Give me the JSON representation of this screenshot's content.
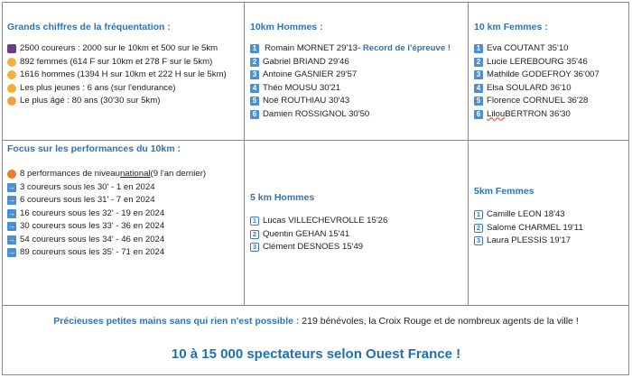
{
  "stats": {
    "title": "Grands chiffres de la fréquentation :",
    "items": [
      {
        "icon": "people-icon",
        "text": "2500 coureurs : 2000 sur le 10km et 500 sur le 5km"
      },
      {
        "icon": "runner-icon",
        "text": "892 femmes (614 F sur 10km et 278 F sur le 5km)"
      },
      {
        "icon": "runner-icon",
        "text": "1616 hommes (1394 H sur 10km et 222 H sur le 5km)"
      },
      {
        "icon": "baby-icon",
        "text": "Les plus jeunes : 6 ans (sur l'endurance)"
      },
      {
        "icon": "elder-icon",
        "text": "Le plus âgé : 80 ans (30'30 sur 5km)"
      }
    ]
  },
  "men10": {
    "title": "10km Hommes :",
    "record": "- Record de l'épreuve !",
    "items": [
      {
        "rank": "1",
        "text": "Romain MORNET 29'13"
      },
      {
        "rank": "2",
        "text": "Gabriel BRIAND 29'46"
      },
      {
        "rank": "3",
        "text": "Antoine GASNIER 29'57"
      },
      {
        "rank": "4",
        "text": "Théo MOUSU 30'21"
      },
      {
        "rank": "5",
        "text": "Noé ROUTHIAU 30'43"
      },
      {
        "rank": "6",
        "text": "Damien ROSSIGNOL 30'50"
      }
    ]
  },
  "women10": {
    "title": "10 km Femmes :",
    "items": [
      {
        "rank": "1",
        "text": "Eva COUTANT 35'10"
      },
      {
        "rank": "2",
        "text": "Lucie LEREBOURG 35'46"
      },
      {
        "rank": "3",
        "text": "Mathilde GODEFROY 36'007"
      },
      {
        "rank": "4",
        "text": "Elsa SOULARD 36'10"
      },
      {
        "rank": "5",
        "text": "Florence CORNUEL 36'28"
      },
      {
        "rank": "6",
        "first": "Lilou",
        "text": " BERTRON 36'30"
      }
    ]
  },
  "focus": {
    "title": "Focus sur les performances du 10km :",
    "fire": {
      "a": "8 performances de niveau ",
      "b": "national ",
      "c": " (9 l'an dernier)"
    },
    "items": [
      "3 coureurs sous les 30' - 1 en 2024",
      "6 coureurs sous les 31' - 7 en 2024",
      "16 coureurs sous les 32' - 19 en 2024",
      "30 coureurs sous les 33' - 36 en 2024",
      "54 coureurs sous les 34' - 46 en 2024",
      "89 coureurs sous les 35' - 71 en 2024"
    ]
  },
  "men5": {
    "title": "5 km Hommes",
    "items": [
      {
        "rank": "1",
        "text": "Lucas VILLECHEVROLLE 15'26"
      },
      {
        "rank": "2",
        "text": "Quentin GEHAN 15'41"
      },
      {
        "rank": "3",
        "text": "Clément DESNOES 15'49"
      }
    ]
  },
  "women5": {
    "title": "5km Femmes",
    "items": [
      {
        "rank": "1",
        "text": "Camille LEON 18'43"
      },
      {
        "rank": "2",
        "text": "Salomé CHARMEL 19'11"
      },
      {
        "rank": "3",
        "text": "Laura PLESSIS 19'17"
      }
    ]
  },
  "footer": {
    "lead": "Précieuses petites mains sans qui rien n'est possible :",
    "rest": " 219 bénévoles, la Croix Rouge et de nombreux agents de la ville !",
    "headline": "10 à 15 000 spectateurs selon Ouest France !"
  },
  "colors": {
    "accent": "#2E74B5"
  }
}
